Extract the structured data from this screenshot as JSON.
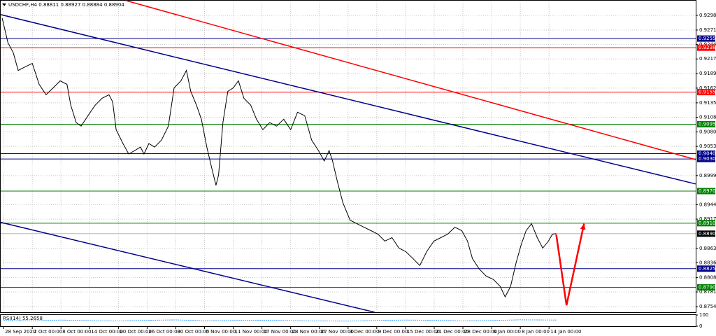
{
  "chart_data": {
    "type": "line",
    "title": "USDCHF,H4  0.88811 0.88927 0.88884 0.88904",
    "xlim": [
      -0.1,
      24.11
    ],
    "ylim": [
      0.87436,
      0.93259
    ],
    "grid": true,
    "xticks": [
      {
        "value": 0,
        "label": "28 Sep 2020"
      },
      {
        "value": 1,
        "label": "2 Oct 00:00"
      },
      {
        "value": 2,
        "label": "8 Oct 00:00"
      },
      {
        "value": 3,
        "label": "14 Oct 00:00"
      },
      {
        "value": 4,
        "label": "20 Oct 00:00"
      },
      {
        "value": 5,
        "label": "26 Oct 00:00"
      },
      {
        "value": 6,
        "label": "30 Oct 00:00"
      },
      {
        "value": 7,
        "label": "5 Nov 00:00"
      },
      {
        "value": 8,
        "label": "11 Nov 00:00"
      },
      {
        "value": 9,
        "label": "17 Nov 00:00"
      },
      {
        "value": 10,
        "label": "23 Nov 00:00"
      },
      {
        "value": 11,
        "label": "27 Nov 00:00"
      },
      {
        "value": 12,
        "label": "3 Dec 00:00"
      },
      {
        "value": 13,
        "label": "9 Dec 00:00"
      },
      {
        "value": 14,
        "label": "15 Dec 00:00"
      },
      {
        "value": 15,
        "label": "21 Dec 00:00"
      },
      {
        "value": 16,
        "label": "28 Dec 00:00"
      },
      {
        "value": 17,
        "label": "4 Jan 00:00"
      },
      {
        "value": 18,
        "label": "8 Jan 00:00"
      },
      {
        "value": 19,
        "label": "14 Jan 00:00"
      }
    ],
    "yticks": [
      0.92985,
      {
        "value": 0.9271,
        "label": "0.92710"
      },
      {
        "value": 0.9244,
        "label": "0.92440"
      },
      {
        "value": 0.9217,
        "label": "0.92170"
      },
      0.91895,
      0.91625,
      {
        "value": 0.9135,
        "label": "0.91350"
      },
      {
        "value": 0.9108,
        "label": "0.91080"
      },
      0.90805,
      0.90535,
      {
        "value": 0.8999,
        "label": "0.89990"
      },
      0.89445,
      0.89175,
      {
        "value": 0.8863,
        "label": "0.88630"
      },
      {
        "value": 0.8836,
        "label": "0.88360"
      },
      0.88085,
      0.87815,
      {
        "value": 0.8754,
        "label": "0.87540"
      }
    ],
    "series": [
      {
        "color": "#000000",
        "x": [
          -0.05,
          0.15,
          0.34,
          0.51,
          0.75,
          1.0,
          1.24,
          1.48,
          1.73,
          1.97,
          2.21,
          2.34,
          2.53,
          2.7,
          2.94,
          3.19,
          3.43,
          3.67,
          3.8,
          3.92,
          4.16,
          4.36,
          4.57,
          4.77,
          4.89,
          5.06,
          5.26,
          5.5,
          5.74,
          5.94,
          6.18,
          6.37,
          6.52,
          6.72,
          6.89,
          7.08,
          7.25,
          7.4,
          7.49,
          7.64,
          7.81,
          8.0,
          8.18,
          8.37,
          8.61,
          8.81,
          9.03,
          9.27,
          9.51,
          9.76,
          10.0,
          10.24,
          10.49,
          10.73,
          10.97,
          11.17,
          11.34,
          11.46,
          11.63,
          11.82,
          12.07,
          12.31,
          12.55,
          12.8,
          13.04,
          13.28,
          13.53,
          13.77,
          14.01,
          14.26,
          14.5,
          14.74,
          14.99,
          15.23,
          15.47,
          15.72,
          15.96,
          16.16,
          16.33,
          16.57,
          16.81,
          17.06,
          17.3,
          17.47,
          17.66,
          17.86,
          18.03,
          18.2,
          18.39,
          18.59,
          18.78,
          18.98,
          19.12,
          19.25
        ],
        "values": [
          0.92933,
          0.92477,
          0.92282,
          0.91956,
          0.92021,
          0.92086,
          0.91695,
          0.915,
          0.9163,
          0.91761,
          0.91695,
          0.91305,
          0.90979,
          0.90914,
          0.91109,
          0.91305,
          0.91435,
          0.915,
          0.9137,
          0.90849,
          0.90588,
          0.90393,
          0.90458,
          0.90523,
          0.90393,
          0.90588,
          0.90523,
          0.90653,
          0.90914,
          0.9163,
          0.91761,
          0.91956,
          0.91565,
          0.91305,
          0.91044,
          0.90523,
          0.90132,
          0.89807,
          0.90002,
          0.90979,
          0.91565,
          0.9163,
          0.91761,
          0.91435,
          0.91305,
          0.91044,
          0.90849,
          0.90979,
          0.90914,
          0.91044,
          0.90849,
          0.91174,
          0.91109,
          0.90653,
          0.90458,
          0.90263,
          0.90458,
          0.90263,
          0.89872,
          0.89481,
          0.89155,
          0.8909,
          0.89025,
          0.8896,
          0.88895,
          0.88765,
          0.8883,
          0.88634,
          0.88569,
          0.88439,
          0.88309,
          0.88569,
          0.88765,
          0.8883,
          0.88895,
          0.89025,
          0.8896,
          0.88765,
          0.88439,
          0.88244,
          0.88113,
          0.88048,
          0.87918,
          0.87723,
          0.87918,
          0.88374,
          0.88699,
          0.8896,
          0.8909,
          0.8883,
          0.88634,
          0.88765,
          0.88895,
          0.88904
        ]
      }
    ],
    "levels": [
      {
        "value": 0.92551,
        "label": "0.92551",
        "color": "#00008b"
      },
      {
        "value": 0.9238,
        "label": "0.92380",
        "color": "#ff0000"
      },
      {
        "value": 0.9155,
        "label": "0.91550",
        "color": "#ff0000"
      },
      {
        "value": 0.9095,
        "label": "0.90950",
        "color": "#008000"
      },
      {
        "value": 0.904,
        "label": "0.90400",
        "color": "#00008b"
      },
      {
        "value": 0.903,
        "label": "0.90300",
        "color": "#00008b"
      },
      {
        "value": 0.897,
        "label": "0.89700",
        "color": "#008000"
      },
      {
        "value": 0.891,
        "label": "0.89100",
        "color": "#008000"
      },
      {
        "value": 0.8825,
        "label": "0.88250",
        "color": "#00008b"
      },
      {
        "value": 0.879,
        "label": "0.87900",
        "color": "#008000"
      }
    ],
    "current_price": {
      "value": 0.88904,
      "label": "0.88904",
      "color": "#000000"
    },
    "trendlines": [
      {
        "color": "#00008b",
        "x": [
          -0.1,
          24.11
        ],
        "values": [
          0.92998,
          0.89833
        ]
      },
      {
        "color": "#ff0000",
        "x": [
          4.28,
          24.11
        ],
        "values": [
          0.93259,
          0.90289
        ]
      },
      {
        "color": "#00008b",
        "x": [
          -0.1,
          12.92
        ],
        "values": [
          0.89116,
          0.87436
        ]
      }
    ],
    "arrow": {
      "color": "#ff0000",
      "x": [
        19.25,
        19.61,
        20.22
      ],
      "values": [
        0.8889,
        0.87566,
        0.8909
      ]
    },
    "indicator": {
      "title": "RSI(14) 55.2658",
      "color": "#1e90ff",
      "ylim": [
        0,
        100
      ],
      "yticks": [
        100,
        0
      ],
      "x": [
        0,
        1,
        2,
        3,
        4,
        5,
        6,
        7,
        8,
        9,
        10,
        11,
        12,
        13,
        14,
        15,
        16,
        17,
        18,
        19.25
      ],
      "values": [
        52,
        48,
        55,
        50,
        47,
        53,
        56,
        49,
        51,
        54,
        50,
        47,
        45,
        52,
        55,
        53,
        48,
        51,
        57,
        55
      ]
    }
  }
}
